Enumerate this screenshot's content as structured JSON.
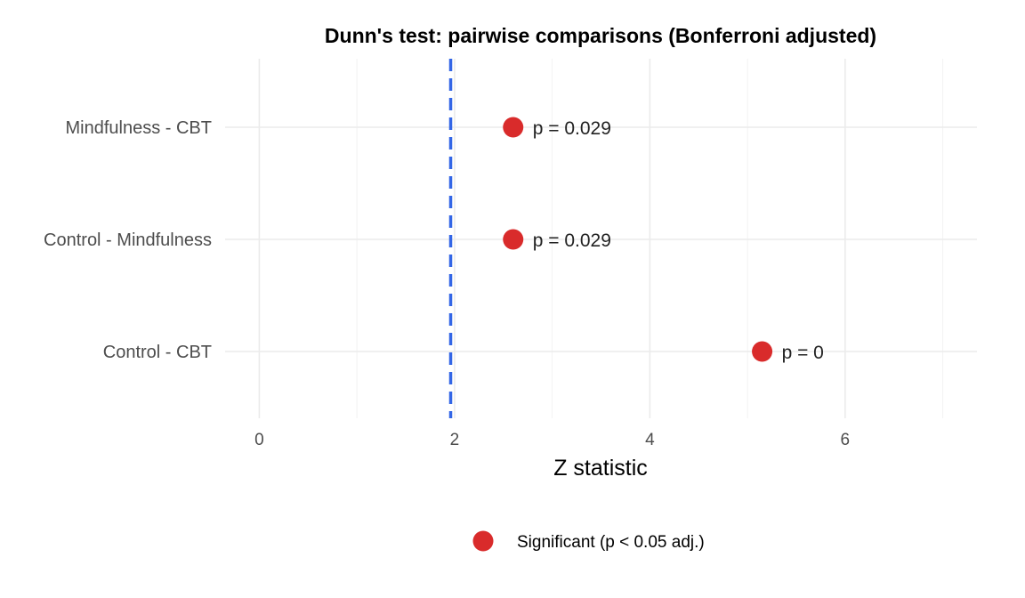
{
  "chart_data": {
    "type": "scatter",
    "title": "Dunn's test: pairwise comparisons (Bonferroni adjusted)",
    "xlabel": "Z statistic",
    "ylabel": "",
    "xlim": [
      -0.35,
      7.35
    ],
    "x_ticks": [
      0,
      2,
      4,
      6
    ],
    "x_tick_labels": [
      "0",
      "2",
      "4",
      "6"
    ],
    "categories": [
      "Mindfulness - CBT",
      "Control - Mindfulness",
      "Control - CBT"
    ],
    "series": [
      {
        "name": "Significant (p < 0.05 adj.)",
        "color": "#d92b2b",
        "points": [
          {
            "category": "Mindfulness - CBT",
            "z": 2.6,
            "label": "p = 0.029"
          },
          {
            "category": "Control - Mindfulness",
            "z": 2.6,
            "label": "p = 0.029"
          },
          {
            "category": "Control - CBT",
            "z": 5.15,
            "label": "p = 0"
          }
        ]
      }
    ],
    "reference_line": {
      "x": 1.96,
      "style": "dashed",
      "color": "#3366e6"
    },
    "grid": true,
    "legend_position": "bottom"
  }
}
